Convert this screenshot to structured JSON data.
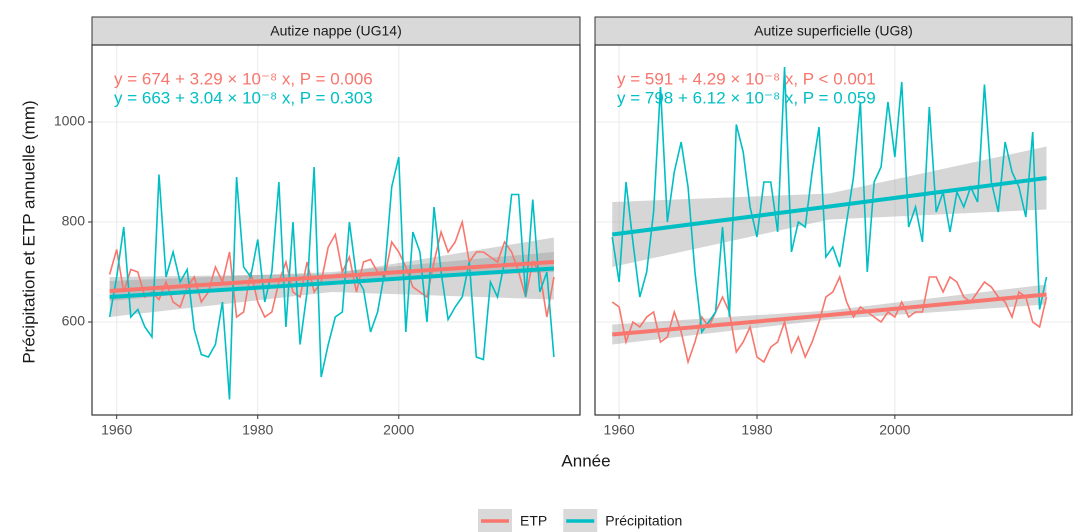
{
  "xlabel": "Année",
  "ylabel": "Précipitation et ETP annuelle (mm)",
  "chart_data": [
    {
      "type": "line",
      "title": "Autize nappe (UG14)",
      "xlim": [
        1956.5,
        2025.7
      ],
      "ylim": [
        414,
        1154
      ],
      "xticks": [
        1960,
        1980,
        2000
      ],
      "yticks": [
        600,
        800,
        1000
      ],
      "grid": true,
      "x": [
        1959,
        1960,
        1961,
        1962,
        1963,
        1964,
        1965,
        1966,
        1967,
        1968,
        1969,
        1970,
        1971,
        1972,
        1973,
        1974,
        1975,
        1976,
        1977,
        1978,
        1979,
        1980,
        1981,
        1982,
        1983,
        1984,
        1985,
        1986,
        1987,
        1988,
        1989,
        1990,
        1991,
        1992,
        1993,
        1994,
        1995,
        1996,
        1997,
        1998,
        1999,
        2000,
        2001,
        2002,
        2003,
        2004,
        2005,
        2006,
        2007,
        2008,
        2009,
        2010,
        2011,
        2012,
        2013,
        2014,
        2015,
        2016,
        2017,
        2018,
        2019,
        2020,
        2021,
        2022
      ],
      "series": [
        {
          "name": "ETP",
          "color": "#F8766D",
          "annotation": "y = 674 + 3.29 × 10⁻⁸ x, P = 0.006",
          "values": [
            695,
            745,
            660,
            705,
            700,
            650,
            660,
            645,
            680,
            640,
            630,
            670,
            690,
            640,
            660,
            710,
            680,
            740,
            610,
            620,
            700,
            640,
            610,
            620,
            680,
            720,
            660,
            650,
            720,
            660,
            680,
            750,
            775,
            700,
            730,
            660,
            720,
            725,
            700,
            690,
            760,
            740,
            710,
            670,
            660,
            650,
            720,
            780,
            740,
            760,
            800,
            720,
            740,
            740,
            730,
            720,
            760,
            740,
            700,
            650,
            720,
            700,
            610,
            690
          ],
          "trend": {
            "x": [
              1959,
              1990.5,
              2022
            ],
            "fit": [
              662,
              691,
              720
            ],
            "lower": [
              642,
              682,
              700
            ],
            "upper": [
              682,
              700,
              740
            ]
          }
        },
        {
          "name": "Précipitation",
          "color": "#00BFC4",
          "annotation": "y = 663 + 3.04 × 10⁻⁸ x, P = 0.303",
          "values": [
            610,
            690,
            790,
            610,
            625,
            590,
            570,
            895,
            690,
            740,
            680,
            705,
            585,
            535,
            530,
            555,
            640,
            445,
            890,
            710,
            690,
            765,
            640,
            700,
            880,
            590,
            800,
            555,
            660,
            910,
            490,
            555,
            610,
            620,
            800,
            690,
            665,
            580,
            620,
            700,
            870,
            930,
            580,
            780,
            740,
            600,
            830,
            700,
            605,
            630,
            650,
            720,
            530,
            525,
            680,
            650,
            720,
            855,
            855,
            650,
            845,
            660,
            700,
            530
          ],
          "trend": {
            "x": [
              1959,
              1990.5,
              2022
            ],
            "fit": [
              650,
              678,
              707
            ],
            "lower": [
              610,
              660,
              645
            ],
            "upper": [
              690,
              696,
              769
            ]
          }
        }
      ]
    },
    {
      "type": "line",
      "title": "Autize superficielle (UG8)",
      "xlim": [
        1956.5,
        2025.7
      ],
      "ylim": [
        414,
        1154
      ],
      "xticks": [
        1960,
        1980,
        2000
      ],
      "yticks": [
        600,
        800,
        1000
      ],
      "grid": true,
      "x": [
        1959,
        1960,
        1961,
        1962,
        1963,
        1964,
        1965,
        1966,
        1967,
        1968,
        1969,
        1970,
        1971,
        1972,
        1973,
        1974,
        1975,
        1976,
        1977,
        1978,
        1979,
        1980,
        1981,
        1982,
        1983,
        1984,
        1985,
        1986,
        1987,
        1988,
        1989,
        1990,
        1991,
        1992,
        1993,
        1994,
        1995,
        1996,
        1997,
        1998,
        1999,
        2000,
        2001,
        2002,
        2003,
        2004,
        2005,
        2006,
        2007,
        2008,
        2009,
        2010,
        2011,
        2012,
        2013,
        2014,
        2015,
        2016,
        2017,
        2018,
        2019,
        2020,
        2021,
        2022
      ],
      "series": [
        {
          "name": "ETP",
          "color": "#F8766D",
          "annotation": "y = 591 + 4.29 × 10⁻⁸ x, P < 0.001",
          "values": [
            640,
            630,
            560,
            600,
            590,
            610,
            620,
            560,
            570,
            620,
            580,
            520,
            560,
            610,
            590,
            620,
            650,
            620,
            540,
            560,
            590,
            530,
            520,
            550,
            560,
            600,
            540,
            570,
            530,
            560,
            600,
            650,
            660,
            690,
            640,
            610,
            630,
            620,
            610,
            600,
            620,
            610,
            640,
            610,
            620,
            620,
            690,
            690,
            660,
            690,
            680,
            650,
            640,
            660,
            680,
            670,
            650,
            640,
            610,
            660,
            650,
            600,
            590,
            650
          ],
          "trend": {
            "x": [
              1959,
              1990.5,
              2022
            ],
            "fit": [
              575,
              614,
              655
            ],
            "lower": [
              555,
              605,
              635
            ],
            "upper": [
              595,
              623,
              675
            ]
          }
        },
        {
          "name": "Précipitation",
          "color": "#00BFC4",
          "annotation": "y = 798 + 6.12 × 10⁻⁸ x, P = 0.059",
          "values": [
            770,
            680,
            880,
            760,
            650,
            700,
            820,
            1070,
            800,
            900,
            960,
            870,
            700,
            580,
            600,
            620,
            790,
            610,
            995,
            940,
            830,
            770,
            880,
            880,
            780,
            1110,
            740,
            800,
            790,
            900,
            990,
            730,
            750,
            710,
            800,
            890,
            1040,
            700,
            880,
            910,
            1040,
            930,
            1080,
            790,
            830,
            760,
            1030,
            820,
            860,
            780,
            860,
            830,
            870,
            840,
            1075,
            880,
            820,
            960,
            900,
            870,
            810,
            980,
            625,
            690
          ],
          "trend": {
            "x": [
              1959,
              1990.5,
              2022
            ],
            "fit": [
              775,
              831,
              888
            ],
            "lower": [
              710,
              805,
              825
            ],
            "upper": [
              840,
              857,
              951
            ]
          }
        }
      ]
    }
  ]
}
